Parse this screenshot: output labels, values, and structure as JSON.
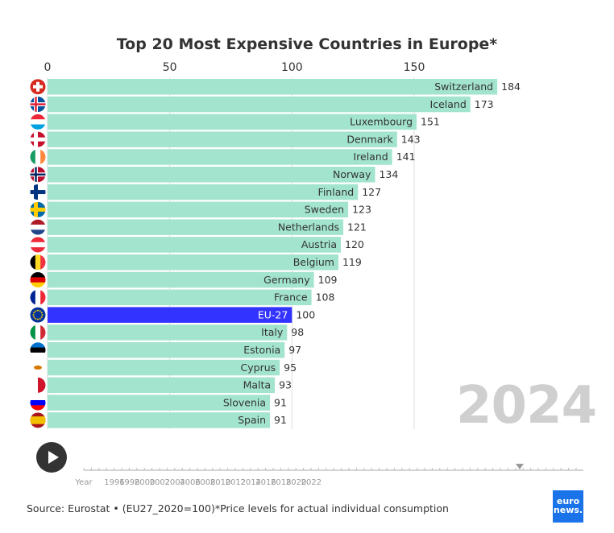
{
  "chart_data": {
    "type": "bar",
    "orientation": "horizontal",
    "title": "Top 20 Most Expensive Countries in Europe*",
    "xlim": [
      0,
      184
    ],
    "xticks": [
      0,
      50,
      100,
      150
    ],
    "grid": true,
    "categories": [
      "Switzerland",
      "Iceland",
      "Luxembourg",
      "Denmark",
      "Ireland",
      "Norway",
      "Finland",
      "Sweden",
      "Netherlands",
      "Austria",
      "Belgium",
      "Germany",
      "France",
      "EU-27",
      "Italy",
      "Estonia",
      "Cyprus",
      "Malta",
      "Slovenia",
      "Spain"
    ],
    "values": [
      184,
      173,
      151,
      143,
      141,
      134,
      127,
      123,
      121,
      120,
      119,
      109,
      108,
      100,
      98,
      97,
      95,
      93,
      91,
      91
    ],
    "highlight": "EU-27",
    "colors": {
      "bar": "#a3e4cf",
      "highlight": "#3333ff"
    },
    "flags": [
      {
        "type": "cross",
        "c": [
          "#d52b1e",
          "#ffffff"
        ]
      },
      {
        "type": "nordic",
        "c": [
          "#02529c",
          "#ffffff",
          "#dc1e35"
        ]
      },
      {
        "type": "h",
        "c": [
          "#ed2939",
          "#ffffff",
          "#00a1de"
        ]
      },
      {
        "type": "nordic",
        "c": [
          "#c8102e",
          "#ffffff",
          "#ffffff"
        ]
      },
      {
        "type": "v",
        "c": [
          "#169b62",
          "#ffffff",
          "#ff883e"
        ]
      },
      {
        "type": "nordic",
        "c": [
          "#ba0c2f",
          "#ffffff",
          "#00205b"
        ]
      },
      {
        "type": "nordic",
        "c": [
          "#ffffff",
          "#003580",
          "#003580"
        ]
      },
      {
        "type": "nordic",
        "c": [
          "#006aa7",
          "#fecc00",
          "#fecc00"
        ]
      },
      {
        "type": "h",
        "c": [
          "#ae1c28",
          "#ffffff",
          "#21468b"
        ]
      },
      {
        "type": "h",
        "c": [
          "#ed2939",
          "#ffffff",
          "#ed2939"
        ]
      },
      {
        "type": "v",
        "c": [
          "#000000",
          "#fdda24",
          "#ef3340"
        ]
      },
      {
        "type": "h",
        "c": [
          "#000000",
          "#dd0000",
          "#ffce00"
        ]
      },
      {
        "type": "v",
        "c": [
          "#002395",
          "#ffffff",
          "#ed2939"
        ]
      },
      {
        "type": "eu",
        "c": [
          "#003399",
          "#ffcc00"
        ]
      },
      {
        "type": "v",
        "c": [
          "#009246",
          "#ffffff",
          "#ce2b37"
        ]
      },
      {
        "type": "h",
        "c": [
          "#0072ce",
          "#000000",
          "#ffffff"
        ]
      },
      {
        "type": "cy",
        "c": [
          "#ffffff",
          "#d57800"
        ]
      },
      {
        "type": "v2",
        "c": [
          "#ffffff",
          "#cf142b"
        ]
      },
      {
        "type": "h",
        "c": [
          "#ffffff",
          "#0000ff",
          "#ff0000"
        ]
      },
      {
        "type": "es",
        "c": [
          "#aa151b",
          "#f1bf00",
          "#aa151b"
        ]
      }
    ],
    "year": "2024"
  },
  "timeline": {
    "label": "Year",
    "ticks": [
      "1996",
      "1998",
      "2000",
      "2002",
      "2004",
      "2006",
      "2008",
      "2010",
      "2012",
      "2014",
      "2016",
      "2018",
      "2020",
      "2022"
    ],
    "current": "2024"
  },
  "source": "Source: Eurostat • (EU27_2020=100)*Price levels for actual individual consumption",
  "logo": {
    "top": "euro",
    "bottom": "news."
  }
}
